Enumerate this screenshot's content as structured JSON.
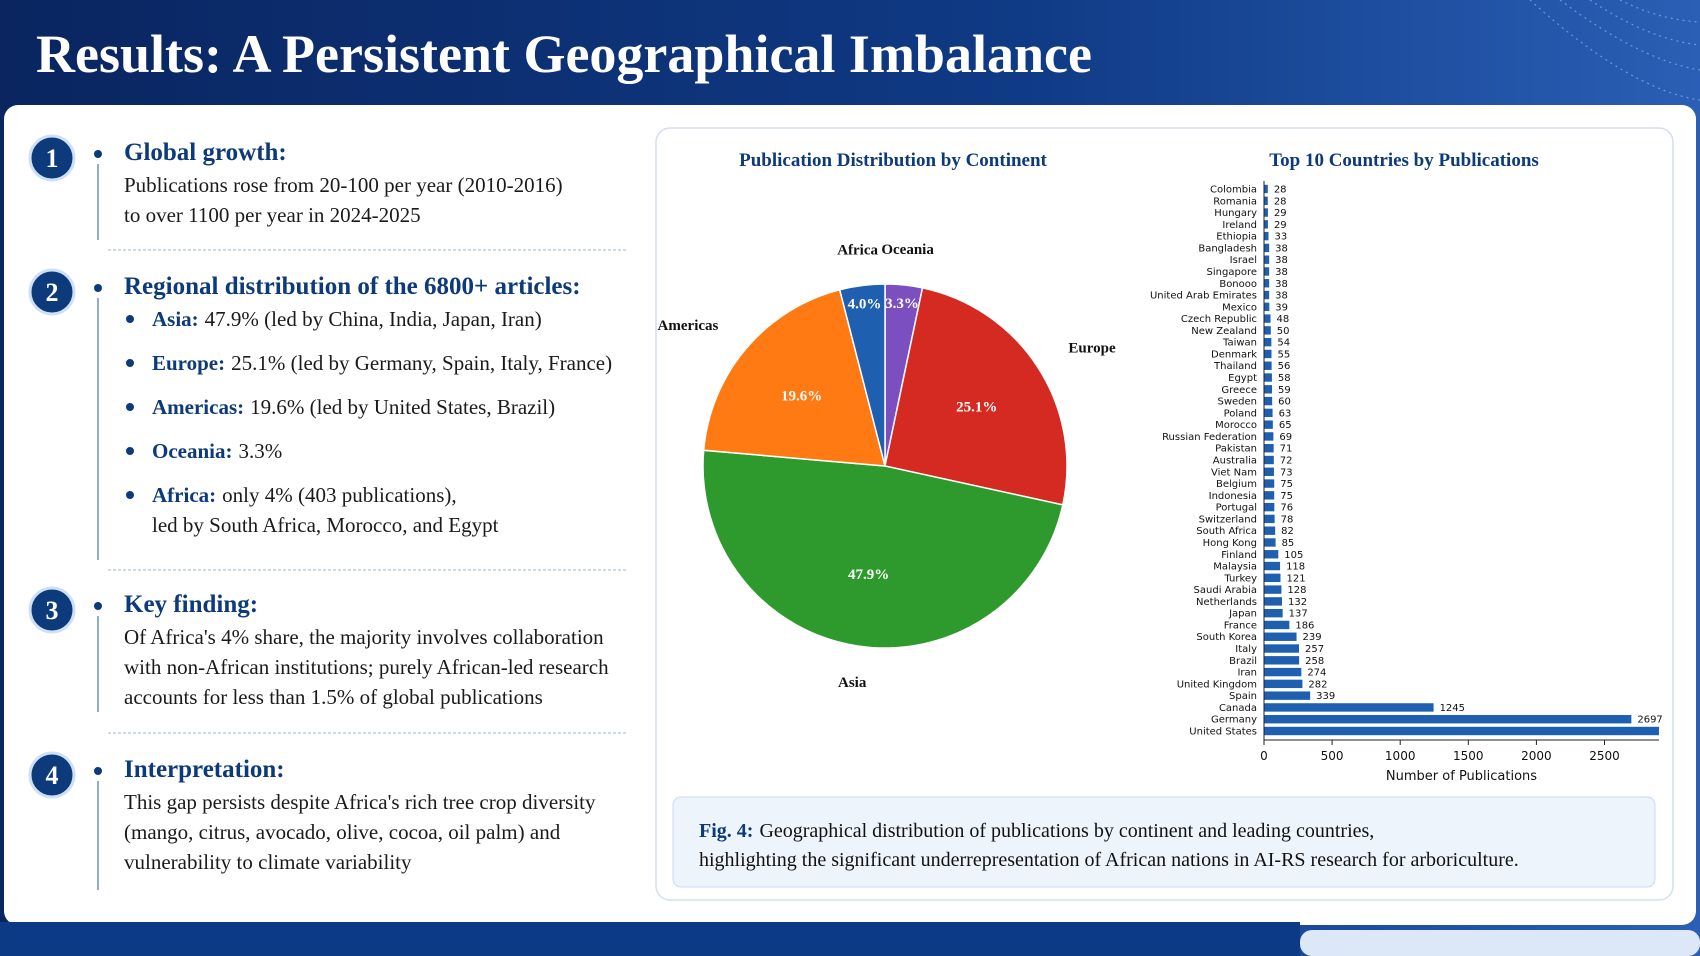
{
  "header": {
    "title": "Results: A Persistent Geographical Imbalance"
  },
  "sections": [
    {
      "number": "1",
      "heading": "Global growth:",
      "lines": [
        "Publications rose from 20-100 per year (2010-2016)",
        "to over 1100 per year in 2024-2025"
      ]
    },
    {
      "number": "2",
      "heading": "Regional distribution of the 6800+ articles:",
      "bullets": [
        {
          "label": "Asia:",
          "lines": [
            "47.9% (led by China, India, Japan, Iran)"
          ]
        },
        {
          "label": "Europe:",
          "lines": [
            "25.1% (led by Germany, Spain, Italy, France)"
          ]
        },
        {
          "label": "Americas:",
          "lines": [
            "19.6% (led by United States, Brazil)"
          ]
        },
        {
          "label": "Oceania:",
          "lines": [
            "3.3%"
          ]
        },
        {
          "label": "Africa:",
          "lines": [
            "only 4% (403 publications),",
            "led by South Africa, Morocco, and Egypt"
          ]
        }
      ]
    },
    {
      "number": "3",
      "heading": "Key finding:",
      "lines": [
        "Of Africa's 4% share, the majority involves collaboration",
        "with non-African institutions; purely African-led research",
        "accounts for less than 1.5% of global publications"
      ]
    },
    {
      "number": "4",
      "heading": "Interpretation:",
      "lines": [
        "This gap persists despite Africa's rich tree crop diversity",
        "(mango, citrus, avocado, olive, cocoa, oil palm) and",
        "vulnerability to climate variability"
      ]
    }
  ],
  "chart_data": [
    {
      "type": "pie",
      "title": "Publication Distribution by Continent",
      "categories": [
        "Oceania",
        "Europe",
        "Asia",
        "Americas",
        "Africa"
      ],
      "values": [
        3.3,
        25.1,
        47.9,
        19.6,
        4.0
      ],
      "value_labels": [
        "3.3%",
        "25.1%",
        "47.9%",
        "19.6%",
        "4.0%"
      ],
      "colors": [
        "#7b4fbf",
        "#d42a22",
        "#2e9a2e",
        "#ff7a12",
        "#1f5fb0"
      ]
    },
    {
      "type": "barh",
      "title": "Top 10 Countries by Publications",
      "xlabel": "Number of Publications",
      "color": "#1f5fb0",
      "categories": [
        "Colombia",
        "Romania",
        "Hungary",
        "Ireland",
        "Ethiopia",
        "Bangladesh",
        "Israel",
        "Singapore",
        "Bonooo",
        "United Arab Emirates",
        "Mexico",
        "Czech Republic",
        "New Zealand",
        "Taiwan",
        "Denmark",
        "Thailand",
        "Egypt",
        "Greece",
        "Sweden",
        "Poland",
        "Morocco",
        "Russian Federation",
        "Pakistan",
        "Australia",
        "Viet Nam",
        "Belgium",
        "Indonesia",
        "Portugal",
        "Switzerland",
        "South Africa",
        "Hong Kong",
        "Finland",
        "Malaysia",
        "Turkey",
        "Saudi Arabia",
        "Netherlands",
        "Japan",
        "France",
        "South Korea",
        "Italy",
        "Brazil",
        "Iran",
        "United Kingdom",
        "Spain",
        "Canada",
        "Germany",
        "United States"
      ],
      "values": [
        28,
        28,
        29,
        29,
        33,
        38,
        38,
        38,
        38,
        38,
        39,
        48,
        50,
        54,
        55,
        56,
        58,
        59,
        60,
        63,
        65,
        69,
        71,
        72,
        73,
        75,
        75,
        76,
        78,
        82,
        85,
        105,
        118,
        121,
        128,
        132,
        137,
        186,
        239,
        257,
        258,
        274,
        282,
        339,
        1245,
        2697,
        2900
      ],
      "value_labels": [
        "28",
        "28",
        "29",
        "29",
        "33",
        "38",
        "38",
        "38",
        "38",
        "38",
        "39",
        "48",
        "50",
        "54",
        "55",
        "56",
        "58",
        "59",
        "60",
        "63",
        "65",
        "69",
        "71",
        "72",
        "73",
        "75",
        "75",
        "76",
        "78",
        "82",
        "85",
        "105",
        "118",
        "121",
        "128",
        "132",
        "137",
        "186",
        "239",
        "257",
        "258",
        "274",
        "282",
        "339",
        "1245",
        "2697",
        null
      ],
      "xlim": [
        0,
        2900
      ],
      "xticks": [
        0,
        500,
        1000,
        1500,
        2000,
        2500
      ]
    }
  ],
  "caption": {
    "label": "Fig. 4:",
    "lines": [
      "Geographical distribution of publications by continent and leading countries,",
      "highlighting the significant underrepresentation of African nations in AI-RS research for arboriculture."
    ]
  }
}
